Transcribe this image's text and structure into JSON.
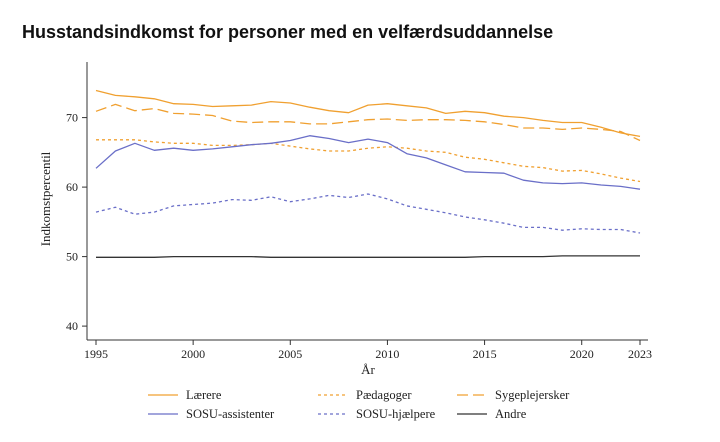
{
  "title": "Husstandsindkomst for personer med en velfærdsuddannelse",
  "chart_data": {
    "type": "line",
    "xlabel": "År",
    "ylabel": "Indkomstpercentil",
    "xlim": [
      1995,
      2023
    ],
    "ylim": [
      38,
      78
    ],
    "xticks": [
      1995,
      2000,
      2005,
      2010,
      2015,
      2020,
      2023
    ],
    "yticks": [
      40,
      50,
      60,
      70
    ],
    "grid": false,
    "legend_position": "bottom",
    "x": [
      1995,
      1996,
      1997,
      1998,
      1999,
      2000,
      2001,
      2002,
      2003,
      2004,
      2005,
      2006,
      2007,
      2008,
      2009,
      2010,
      2011,
      2012,
      2013,
      2014,
      2015,
      2016,
      2017,
      2018,
      2019,
      2020,
      2021,
      2022,
      2023
    ],
    "series": [
      {
        "name": "Lærere",
        "color": "#f0a030",
        "dash": "solid",
        "values": [
          73.9,
          73.2,
          73.0,
          72.7,
          72.0,
          71.9,
          71.6,
          71.7,
          71.8,
          72.3,
          72.1,
          71.5,
          71.0,
          70.7,
          71.8,
          72.0,
          71.7,
          71.4,
          70.6,
          70.9,
          70.7,
          70.2,
          70.0,
          69.6,
          69.3,
          69.3,
          68.6,
          67.8,
          67.3
        ]
      },
      {
        "name": "Pædagoger",
        "color": "#f0a030",
        "dash": "dotted",
        "values": [
          66.8,
          66.8,
          66.8,
          66.5,
          66.3,
          66.3,
          66.0,
          66.0,
          66.1,
          66.3,
          65.9,
          65.5,
          65.2,
          65.2,
          65.6,
          65.8,
          65.6,
          65.2,
          65.0,
          64.3,
          64.0,
          63.5,
          63.0,
          62.8,
          62.3,
          62.4,
          61.9,
          61.3,
          60.8
        ]
      },
      {
        "name": "Sygeplejersker",
        "color": "#f0a030",
        "dash": "longdash",
        "values": [
          70.9,
          71.9,
          71.0,
          71.3,
          70.6,
          70.5,
          70.3,
          69.5,
          69.3,
          69.4,
          69.4,
          69.1,
          69.1,
          69.4,
          69.7,
          69.8,
          69.6,
          69.7,
          69.7,
          69.6,
          69.4,
          69.0,
          68.5,
          68.5,
          68.3,
          68.5,
          68.3,
          68.0,
          66.7
        ]
      },
      {
        "name": "SOSU-assistenter",
        "color": "#6a6fc8",
        "dash": "solid",
        "values": [
          62.7,
          65.2,
          66.3,
          65.3,
          65.6,
          65.3,
          65.5,
          65.8,
          66.1,
          66.3,
          66.7,
          67.4,
          67.0,
          66.4,
          66.9,
          66.4,
          64.8,
          64.2,
          63.2,
          62.2,
          62.1,
          62.0,
          61.0,
          60.6,
          60.5,
          60.6,
          60.3,
          60.1,
          59.7
        ]
      },
      {
        "name": "SOSU-hjælpere",
        "color": "#6a6fc8",
        "dash": "dotted",
        "values": [
          56.4,
          57.1,
          56.1,
          56.4,
          57.3,
          57.5,
          57.7,
          58.2,
          58.1,
          58.6,
          57.9,
          58.3,
          58.8,
          58.5,
          59.0,
          58.3,
          57.3,
          56.8,
          56.3,
          55.7,
          55.3,
          54.8,
          54.2,
          54.2,
          53.8,
          54.0,
          53.9,
          53.9,
          53.4
        ]
      },
      {
        "name": "Andre",
        "color": "#333333",
        "dash": "solid",
        "values": [
          49.9,
          49.9,
          49.9,
          49.9,
          50.0,
          50.0,
          50.0,
          50.0,
          50.0,
          49.9,
          49.9,
          49.9,
          49.9,
          49.9,
          49.9,
          49.9,
          49.9,
          49.9,
          49.9,
          49.9,
          50.0,
          50.0,
          50.0,
          50.0,
          50.1,
          50.1,
          50.1,
          50.1,
          50.1
        ]
      }
    ]
  }
}
